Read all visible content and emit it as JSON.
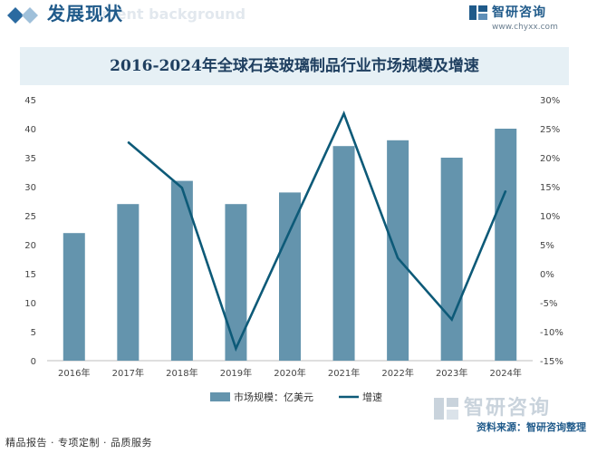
{
  "header": {
    "section_title": "发展现状",
    "section_bg_text": "ment background"
  },
  "brand": {
    "name": "智研咨询",
    "url": "www.chyxx.com",
    "logo_icon": "zhiyan-logo-icon"
  },
  "watermark": {
    "text": "智研咨询"
  },
  "colors": {
    "bar": "#6494ad",
    "line": "#0d5a78",
    "title_band": "#e6f0f5",
    "brand": "#1f5a8a"
  },
  "chart_data": {
    "type": "bar",
    "title": "2016-2024年全球石英玻璃制品行业市场规模及增速",
    "categories": [
      "2016年",
      "2017年",
      "2018年",
      "2019年",
      "2020年",
      "2021年",
      "2022年",
      "2023年",
      "2024年"
    ],
    "series": [
      {
        "name": "市场规模：亿美元",
        "type": "bar",
        "axis": "left",
        "values": [
          22,
          27,
          31,
          27,
          29,
          37,
          38,
          35,
          40
        ]
      },
      {
        "name": "增速",
        "type": "line",
        "axis": "right",
        "values": [
          null,
          22.7,
          14.8,
          -12.9,
          7.4,
          27.6,
          2.7,
          -7.9,
          14.3
        ]
      }
    ],
    "left_axis": {
      "ylim": [
        0,
        45
      ],
      "ticks": [
        "0",
        "5",
        "10",
        "15",
        "20",
        "25",
        "30",
        "35",
        "40",
        "45"
      ]
    },
    "right_axis": {
      "ylim": [
        -15,
        30
      ],
      "ticks": [
        "-15%",
        "-10%",
        "-5%",
        "0%",
        "5%",
        "10%",
        "15%",
        "20%",
        "25%",
        "30%"
      ]
    },
    "grid": false,
    "legend": "bottom"
  },
  "footer": {
    "left": "精品报告 · 专项定制 · 品质服务",
    "right": "资料来源：智研咨询整理"
  }
}
